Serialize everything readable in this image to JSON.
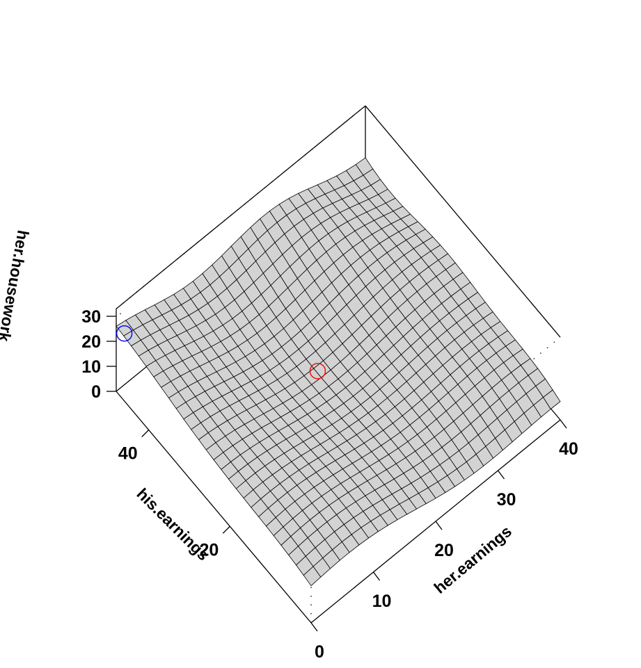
{
  "chart_data": {
    "type": "surface",
    "title": "",
    "axes": {
      "x": {
        "label": "her.earnings",
        "ticks": [
          "0",
          "10",
          "20",
          "30",
          "40"
        ],
        "range": [
          0,
          40
        ]
      },
      "y": {
        "label": "his.earnings",
        "ticks": [
          "20",
          "40"
        ],
        "range": [
          0,
          48
        ]
      },
      "z": {
        "label": "her.housework",
        "ticks": [
          "0",
          "10",
          "20",
          "30"
        ],
        "range": [
          0,
          33
        ]
      }
    },
    "grid": false,
    "surface": {
      "fill": "#d3d3d3",
      "mesh_color": "#000000",
      "grid_points": 26,
      "description_values": {
        "z_at_x0_y48": 27,
        "z_at_x40_y0": 5,
        "z_center": 14
      }
    },
    "highlighted_points": [
      {
        "name": "blue-point",
        "color": "#0000ff",
        "x": 0,
        "y": 46,
        "z": 27
      },
      {
        "name": "red-point",
        "color": "#ff0000",
        "x": 18,
        "y": 26,
        "z": 14
      }
    ]
  }
}
